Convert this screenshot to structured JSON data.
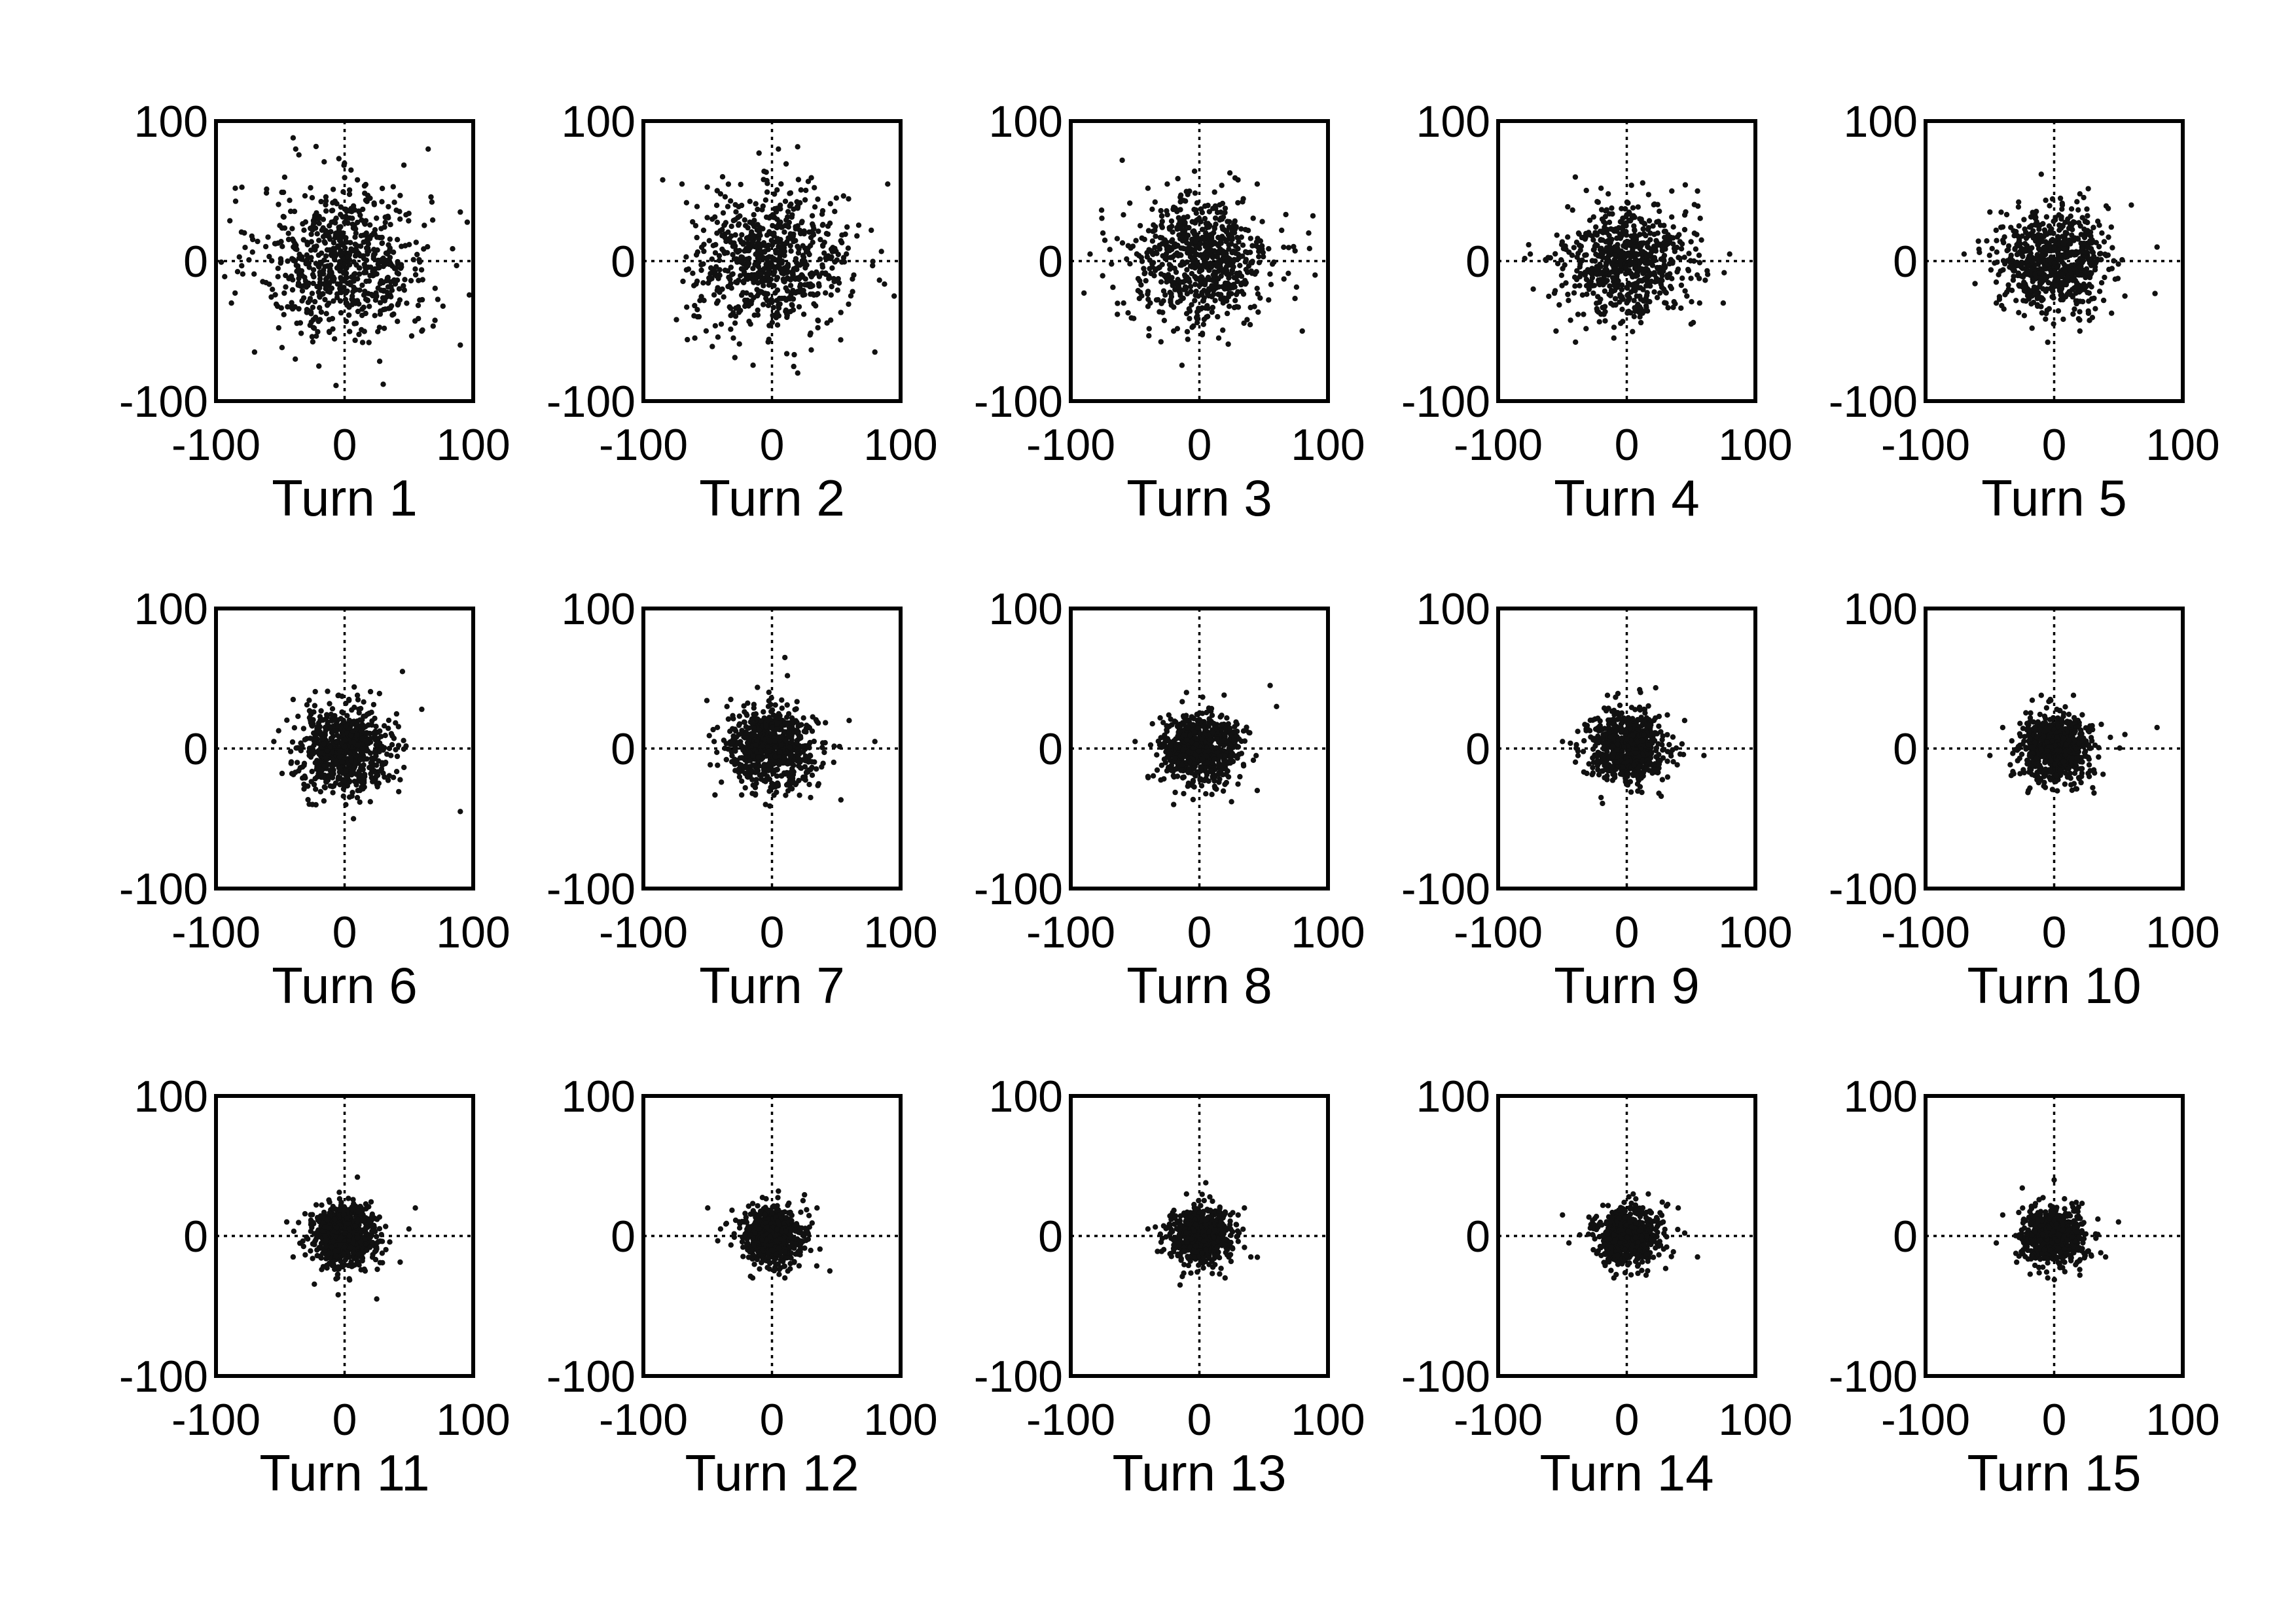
{
  "chart_data": {
    "type": "scatter",
    "grid": false,
    "legend": "none",
    "marker_color": "#111111",
    "xlim": [
      -100,
      100
    ],
    "ylim": [
      -100,
      100
    ],
    "xticks": [
      "-100",
      "0",
      "100"
    ],
    "yticks": [
      "-100",
      "0",
      "100"
    ],
    "panels": [
      {
        "title": "Turn 1",
        "spread": 33,
        "points": [
          [
            -40,
            88
          ],
          [
            -38,
            80
          ],
          [
            65,
            80
          ],
          [
            -85,
            52
          ],
          [
            -88,
            -30
          ],
          [
            90,
            35
          ],
          [
            90,
            -60
          ],
          [
            -20,
            -75
          ],
          [
            30,
            -88
          ],
          [
            60,
            -50
          ],
          [
            -70,
            -65
          ],
          [
            5,
            65
          ],
          [
            10,
            58
          ]
        ]
      },
      {
        "title": "Turn 2",
        "spread": 30,
        "points": [
          [
            -85,
            58
          ],
          [
            -70,
            55
          ],
          [
            90,
            55
          ],
          [
            95,
            -25
          ],
          [
            80,
            -65
          ],
          [
            20,
            -80
          ],
          [
            -30,
            -55
          ],
          [
            -60,
            -55
          ],
          [
            5,
            80
          ],
          [
            -40,
            48
          ],
          [
            50,
            45
          ]
        ]
      },
      {
        "title": "Turn 3",
        "spread": 28,
        "points": [
          [
            -60,
            72
          ],
          [
            -40,
            52
          ],
          [
            -25,
            55
          ],
          [
            30,
            58
          ],
          [
            45,
            55
          ],
          [
            -75,
            20
          ],
          [
            85,
            20
          ],
          [
            -85,
            5
          ],
          [
            90,
            -10
          ],
          [
            80,
            -50
          ],
          [
            -20,
            -50
          ],
          [
            15,
            -55
          ]
        ]
      },
      {
        "title": "Turn 4",
        "spread": 24,
        "points": [
          [
            -40,
            60
          ],
          [
            -20,
            52
          ],
          [
            35,
            50
          ],
          [
            55,
            50
          ],
          [
            -55,
            -50
          ],
          [
            -10,
            -55
          ],
          [
            50,
            -45
          ],
          [
            75,
            -30
          ],
          [
            80,
            5
          ],
          [
            -75,
            5
          ]
        ]
      },
      {
        "title": "Turn 5",
        "spread": 21,
        "points": [
          [
            -10,
            62
          ],
          [
            20,
            48
          ],
          [
            60,
            40
          ],
          [
            -50,
            35
          ],
          [
            80,
            10
          ],
          [
            -70,
            5
          ],
          [
            -5,
            -58
          ],
          [
            20,
            -50
          ],
          [
            -45,
            -30
          ],
          [
            55,
            -25
          ]
        ]
      },
      {
        "title": "Turn 6",
        "spread": 18,
        "points": [
          [
            45,
            55
          ],
          [
            60,
            28
          ],
          [
            90,
            -45
          ],
          [
            -40,
            35
          ],
          [
            -55,
            5
          ],
          [
            -25,
            -40
          ],
          [
            20,
            -38
          ],
          [
            10,
            38
          ]
        ]
      },
      {
        "title": "Turn 7",
        "spread": 17,
        "points": [
          [
            10,
            65
          ],
          [
            12,
            52
          ],
          [
            -35,
            30
          ],
          [
            80,
            5
          ],
          [
            60,
            20
          ],
          [
            -45,
            5
          ],
          [
            -5,
            -40
          ],
          [
            30,
            -35
          ]
        ]
      },
      {
        "title": "Turn 8",
        "spread": 15,
        "points": [
          [
            55,
            45
          ],
          [
            60,
            30
          ],
          [
            -10,
            40
          ],
          [
            -50,
            5
          ],
          [
            -40,
            -20
          ],
          [
            -20,
            -40
          ],
          [
            25,
            -38
          ],
          [
            45,
            -30
          ]
        ]
      },
      {
        "title": "Turn 9",
        "spread": 15,
        "points": [
          [
            10,
            42
          ],
          [
            -15,
            38
          ],
          [
            -50,
            5
          ],
          [
            60,
            -5
          ],
          [
            45,
            20
          ],
          [
            -20,
            -35
          ],
          [
            25,
            -32
          ]
        ]
      },
      {
        "title": "Turn 10",
        "spread": 14,
        "points": [
          [
            80,
            15
          ],
          [
            55,
            10
          ],
          [
            -40,
            15
          ],
          [
            -50,
            -5
          ],
          [
            15,
            38
          ],
          [
            -10,
            38
          ],
          [
            -20,
            -30
          ],
          [
            30,
            -28
          ]
        ]
      },
      {
        "title": "Turn 11",
        "spread": 13,
        "points": [
          [
            10,
            42
          ],
          [
            55,
            20
          ],
          [
            -45,
            10
          ],
          [
            -40,
            -15
          ],
          [
            -5,
            -42
          ],
          [
            25,
            -45
          ],
          [
            50,
            5
          ]
        ]
      },
      {
        "title": "Turn 12",
        "spread": 12,
        "points": [
          [
            -50,
            20
          ],
          [
            -40,
            5
          ],
          [
            45,
            -25
          ],
          [
            35,
            20
          ],
          [
            5,
            32
          ],
          [
            -15,
            -30
          ],
          [
            10,
            -30
          ]
        ]
      },
      {
        "title": "Turn 13",
        "spread": 12,
        "points": [
          [
            5,
            38
          ],
          [
            -10,
            30
          ],
          [
            -40,
            5
          ],
          [
            40,
            -15
          ],
          [
            -15,
            -35
          ],
          [
            20,
            -30
          ],
          [
            35,
            20
          ]
        ]
      },
      {
        "title": "Turn 14",
        "spread": 12,
        "points": [
          [
            -50,
            15
          ],
          [
            -45,
            -5
          ],
          [
            55,
            -15
          ],
          [
            40,
            20
          ],
          [
            5,
            30
          ],
          [
            -10,
            -30
          ],
          [
            15,
            -28
          ]
        ]
      },
      {
        "title": "Turn 15",
        "spread": 12,
        "points": [
          [
            -40,
            15
          ],
          [
            -45,
            -5
          ],
          [
            50,
            10
          ],
          [
            40,
            -15
          ],
          [
            0,
            40
          ],
          [
            -5,
            -30
          ],
          [
            20,
            -28
          ]
        ]
      }
    ]
  }
}
